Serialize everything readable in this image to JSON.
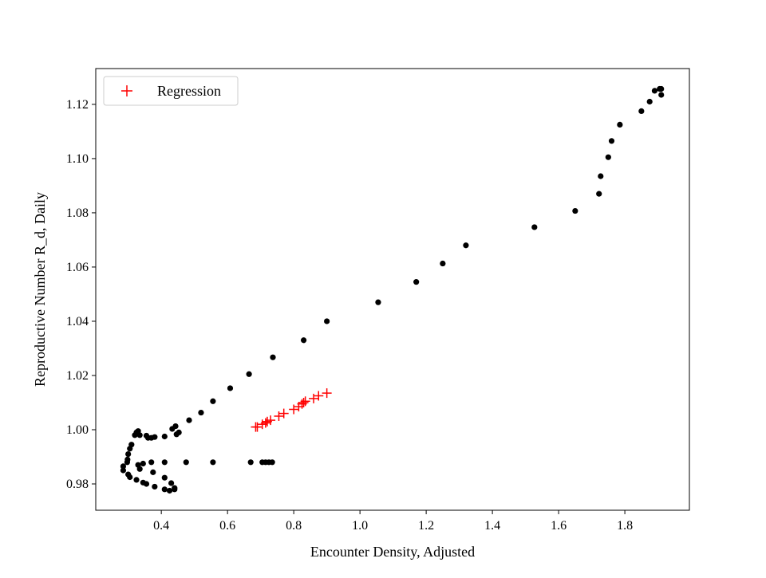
{
  "chart_data": {
    "type": "scatter",
    "title": "",
    "xlabel": "Encounter Density, Adjusted",
    "ylabel": "Reproductive Number R_d, Daily",
    "xlim": [
      0.202,
      1.995
    ],
    "ylim": [
      0.9703,
      1.1332
    ],
    "xticks": [
      0.4,
      0.6,
      0.8,
      1.0,
      1.2,
      1.4,
      1.6,
      1.8
    ],
    "xtick_labels": [
      "0.4",
      "0.6",
      "0.8",
      "1.0",
      "1.2",
      "1.4",
      "1.6",
      "1.8"
    ],
    "yticks": [
      0.98,
      1.0,
      1.02,
      1.04,
      1.06,
      1.08,
      1.1,
      1.12
    ],
    "ytick_labels": [
      "0.98",
      "1.00",
      "1.02",
      "1.04",
      "1.06",
      "1.08",
      "1.10",
      "1.12"
    ],
    "grid": false,
    "legend": {
      "placement": "top-left",
      "entries": [
        "Regression"
      ]
    },
    "series": [
      {
        "marker": "circle",
        "color": "#000000",
        "points": [
          [
            1.91,
            1.1257
          ],
          [
            1.905,
            1.1257
          ],
          [
            1.89,
            1.125
          ],
          [
            1.91,
            1.1235
          ],
          [
            1.875,
            1.121
          ],
          [
            1.85,
            1.1175
          ],
          [
            1.785,
            1.1125
          ],
          [
            1.76,
            1.1065
          ],
          [
            1.75,
            1.1005
          ],
          [
            1.727,
            1.0935
          ],
          [
            1.722,
            1.087
          ],
          [
            1.65,
            1.0807
          ],
          [
            1.527,
            1.0747
          ],
          [
            1.32,
            1.068
          ],
          [
            1.25,
            1.0613
          ],
          [
            1.17,
            1.0545
          ],
          [
            1.055,
            1.047
          ],
          [
            0.9,
            1.04
          ],
          [
            0.83,
            1.033
          ],
          [
            0.737,
            1.0267
          ],
          [
            0.665,
            1.0205
          ],
          [
            0.608,
            1.0153
          ],
          [
            0.556,
            1.0105
          ],
          [
            0.52,
            1.0063
          ],
          [
            0.484,
            1.0035
          ],
          [
            0.453,
            0.999
          ],
          [
            0.446,
            0.9983
          ],
          [
            0.443,
            1.0013
          ],
          [
            0.433,
            1.0003
          ],
          [
            0.41,
            0.9975
          ],
          [
            0.38,
            0.9973
          ],
          [
            0.37,
            0.997
          ],
          [
            0.36,
            0.997
          ],
          [
            0.355,
            0.9978
          ],
          [
            0.335,
            0.998
          ],
          [
            0.325,
            0.999
          ],
          [
            0.33,
            0.9995
          ],
          [
            0.32,
            0.998
          ],
          [
            0.31,
            0.9945
          ],
          [
            0.305,
            0.993
          ],
          [
            0.3,
            0.991
          ],
          [
            0.298,
            0.989
          ],
          [
            0.297,
            0.988
          ],
          [
            0.285,
            0.9865
          ],
          [
            0.285,
            0.985
          ],
          [
            0.3,
            0.9835
          ],
          [
            0.305,
            0.9825
          ],
          [
            0.325,
            0.9815
          ],
          [
            0.345,
            0.9805
          ],
          [
            0.355,
            0.98
          ],
          [
            0.38,
            0.979
          ],
          [
            0.41,
            0.978
          ],
          [
            0.425,
            0.9775
          ],
          [
            0.44,
            0.978
          ],
          [
            0.44,
            0.9785
          ],
          [
            0.43,
            0.9803
          ],
          [
            0.41,
            0.9823
          ],
          [
            0.375,
            0.9843
          ],
          [
            0.335,
            0.9855
          ],
          [
            0.33,
            0.987
          ],
          [
            0.345,
            0.9875
          ],
          [
            0.37,
            0.988
          ],
          [
            0.41,
            0.988
          ],
          [
            0.475,
            0.988
          ],
          [
            0.556,
            0.988
          ],
          [
            0.67,
            0.988
          ],
          [
            0.705,
            0.988
          ],
          [
            0.715,
            0.988
          ],
          [
            0.725,
            0.988
          ],
          [
            0.735,
            0.988
          ]
        ]
      },
      {
        "name": "Regression",
        "marker": "plus",
        "color": "#ff0000",
        "points": [
          [
            0.685,
            1.001
          ],
          [
            0.69,
            1.001
          ],
          [
            0.705,
            1.002
          ],
          [
            0.715,
            1.0025
          ],
          [
            0.72,
            1.003
          ],
          [
            0.73,
            1.0035
          ],
          [
            0.755,
            1.005
          ],
          [
            0.77,
            1.006
          ],
          [
            0.8,
            1.0075
          ],
          [
            0.815,
            1.0085
          ],
          [
            0.825,
            1.0095
          ],
          [
            0.83,
            1.01
          ],
          [
            0.835,
            1.0105
          ],
          [
            0.86,
            1.0115
          ],
          [
            0.875,
            1.0125
          ],
          [
            0.9,
            1.0135
          ]
        ]
      }
    ]
  }
}
